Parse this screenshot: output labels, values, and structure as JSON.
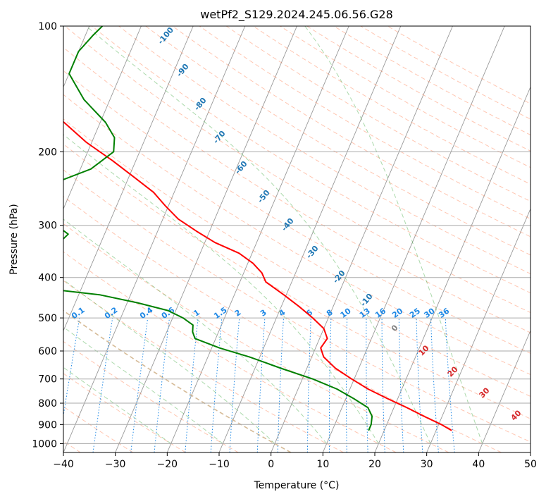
{
  "chart_data": {
    "type": "line",
    "title": "wetPf2_S129.2024.245.06.56.G28",
    "xlabel": "Temperature (°C)",
    "ylabel": "Pressure (hPa)",
    "xlim": [
      -40,
      50
    ],
    "ylim": [
      1050,
      100
    ],
    "y_scale": "log",
    "x_ticks": [
      -40,
      -30,
      -20,
      -10,
      0,
      10,
      20,
      30,
      40,
      50
    ],
    "x_tick_labels": [
      "−40",
      "−30",
      "−20",
      "−10",
      "0",
      "10",
      "20",
      "30",
      "40",
      "50"
    ],
    "y_ticks": [
      100,
      200,
      300,
      400,
      500,
      600,
      700,
      800,
      900,
      1000
    ],
    "y_tick_labels": [
      "100",
      "200",
      "300",
      "400",
      "500",
      "600",
      "700",
      "800",
      "900",
      "1000"
    ],
    "grid": true,
    "colors": {
      "temperature": "#ff0000",
      "dewpoint": "#008000",
      "isotherm": "#999999",
      "dry_adiabat": "#ff7f50",
      "moist_adiabat": "#2ca02c",
      "mixing_ratio": "#1e88e5",
      "dry_label": "#1f77b4",
      "moist_label": "#d62728"
    },
    "series": [
      {
        "key": "temperature",
        "color": "#ff0000",
        "pressure": [
          930,
          900,
          860,
          820,
          780,
          740,
          700,
          660,
          620,
          590,
          560,
          530,
          500,
          470,
          440,
          410,
          390,
          370,
          350,
          330,
          310,
          290,
          270,
          250,
          230,
          210,
          190,
          170,
          150,
          135,
          120,
          110,
          104,
          100
        ],
        "temp": [
          33.0,
          30.5,
          26.5,
          22.5,
          18.0,
          13.5,
          9.5,
          5.5,
          2.3,
          1.0,
          1.5,
          0.0,
          -3.0,
          -6.5,
          -10.5,
          -15.0,
          -16.5,
          -19.0,
          -22.5,
          -28.0,
          -32.5,
          -37.0,
          -40.5,
          -44.0,
          -49.0,
          -54.5,
          -61.0,
          -67.0,
          -74.0,
          -79.0,
          -84.0,
          -87.0,
          -88.5,
          -88.0
        ]
      },
      {
        "key": "dewpoint",
        "color": "#008000",
        "pressure": [
          930,
          900,
          860,
          820,
          780,
          740,
          700,
          660,
          620,
          590,
          560,
          540,
          520,
          500,
          480,
          460,
          440,
          420,
          405,
          395,
          380,
          368,
          360,
          350,
          330,
          315,
          300,
          290,
          280,
          272,
          265,
          260,
          250,
          235,
          220,
          200,
          185,
          170,
          150,
          130,
          115,
          105,
          100
        ],
        "temp": [
          17.0,
          17.0,
          16.5,
          15.0,
          11.5,
          7.5,
          2.0,
          -5.0,
          -12.0,
          -18.5,
          -24.0,
          -25.0,
          -25.5,
          -28.0,
          -31.5,
          -38.0,
          -46.0,
          -61.0,
          -78.0,
          -85.0,
          -84.0,
          -78.0,
          -72.0,
          -66.0,
          -58.0,
          -57.0,
          -60.0,
          -66.0,
          -76.0,
          -84.0,
          -86.0,
          -84.0,
          -72.0,
          -63.0,
          -58.0,
          -55.0,
          -56.0,
          -59.0,
          -65.0,
          -70.0,
          -70.0,
          -68.5,
          -67.5
        ]
      }
    ],
    "dry_adiabat_labels": [
      "-100",
      "-90",
      "-80",
      "-70",
      "-60",
      "-50",
      "-40",
      "-30",
      "-20",
      "-10"
    ],
    "zero_label": "0",
    "moist_adiabat_labels": [
      "10",
      "20",
      "30",
      "40"
    ],
    "mixing_ratio_labels": [
      "0.1",
      "0.2",
      "0.4",
      "0.6",
      "1",
      "1.5",
      "2",
      "3",
      "4",
      "6",
      "8",
      "10",
      "13",
      "16",
      "20",
      "25",
      "30",
      "36"
    ]
  }
}
